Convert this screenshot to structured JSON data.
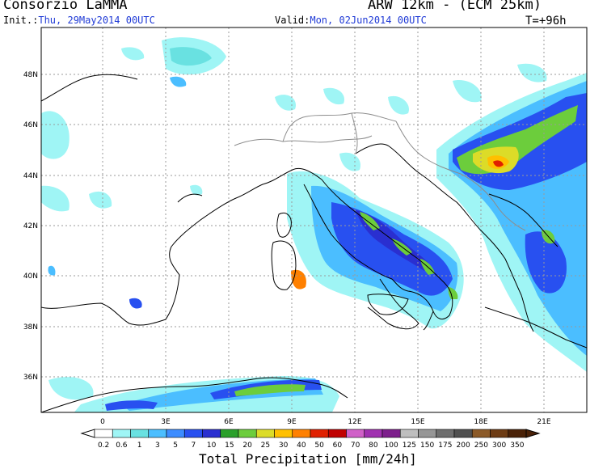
{
  "header": {
    "organization": "Consorzio LaMMA",
    "product": "ARW 12km - (ECM 25km)",
    "init_label": "Init.:",
    "init_value": "Thu, 29May2014 00UTC",
    "valid_label": "Valid:",
    "valid_value": "Mon, 02Jun2014 00UTC",
    "lead_time": "T=+96h"
  },
  "map": {
    "lat_labels": [
      "48N",
      "46N",
      "44N",
      "42N",
      "40N",
      "38N",
      "36N"
    ],
    "lon_labels": [
      "0",
      "3E",
      "6E",
      "9E",
      "12E",
      "15E",
      "18E",
      "21E"
    ]
  },
  "legend": {
    "values": [
      "0.2",
      "0.6",
      "1",
      "3",
      "5",
      "7",
      "10",
      "15",
      "20",
      "25",
      "30",
      "40",
      "50",
      "60",
      "70",
      "80",
      "100",
      "125",
      "150",
      "175",
      "200",
      "250",
      "300",
      "350"
    ],
    "colors": [
      "#ffffff",
      "#9ff5f5",
      "#69e1e1",
      "#4bbeff",
      "#3c8cff",
      "#2850f0",
      "#2a2fd0",
      "#2aa02a",
      "#6ccd3c",
      "#dcdc28",
      "#ffc000",
      "#ff8000",
      "#e02000",
      "#c00000",
      "#d060c8",
      "#a030b0",
      "#7d1e8c",
      "#bebebe",
      "#969696",
      "#6e6e6e",
      "#505050",
      "#8c5a28",
      "#6e3c14",
      "#4a2208"
    ],
    "unit_label": "Total Precipitation [mm/24h]"
  }
}
